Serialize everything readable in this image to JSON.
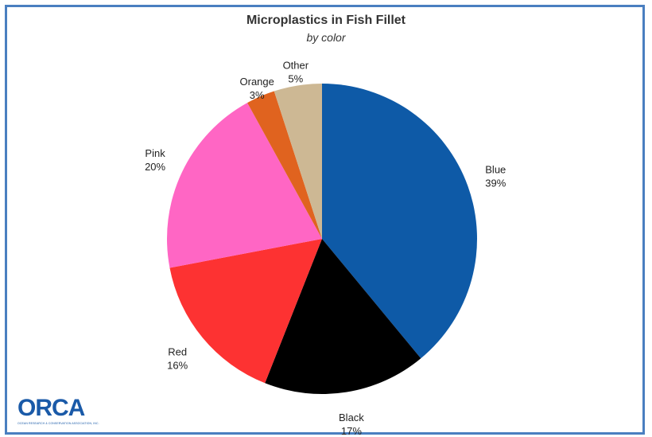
{
  "chart_data": {
    "type": "pie",
    "title": "Microplastics in Fish Fillet",
    "subtitle": "by color",
    "slices": [
      {
        "label": "Blue",
        "value": 39,
        "value_label": "39%",
        "color": "#0e5aa7"
      },
      {
        "label": "Black",
        "value": 17,
        "value_label": "17%",
        "color": "#000000"
      },
      {
        "label": "Red",
        "value": 16,
        "value_label": "16%",
        "color": "#fd3232"
      },
      {
        "label": "Pink",
        "value": 20,
        "value_label": "20%",
        "color": "#ff66c4"
      },
      {
        "label": "Orange",
        "value": 3,
        "value_label": "3%",
        "color": "#e0631f"
      },
      {
        "label": "Other",
        "value": 5,
        "value_label": "5%",
        "color": "#cdb894"
      }
    ],
    "start_angle": "12 o'clock",
    "direction": "clockwise"
  },
  "logo": {
    "text": "ORCA",
    "subtext": "OCEAN RESEARCH & CONSERVATION ASSOCIATION, INC."
  }
}
